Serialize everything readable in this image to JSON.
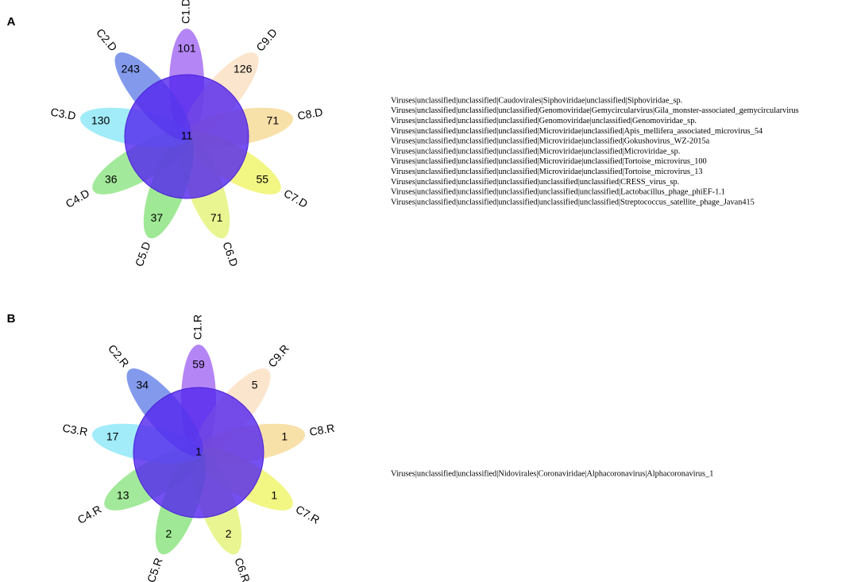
{
  "panels": [
    {
      "label": "A",
      "center": 11,
      "petals": [
        {
          "name": "C1.D",
          "count": 101
        },
        {
          "name": "C9.D",
          "count": 126
        },
        {
          "name": "C8.D",
          "count": 71
        },
        {
          "name": "C7.D",
          "count": 55
        },
        {
          "name": "C6.D",
          "count": 71
        },
        {
          "name": "C5.D",
          "count": 37
        },
        {
          "name": "C4.D",
          "count": 36
        },
        {
          "name": "C3.D",
          "count": 130
        },
        {
          "name": "C2.D",
          "count": 243
        }
      ],
      "taxa": [
        "Viruses|unclassified|unclassified|Caudovirales|Siphoviridae|unclassified|Siphoviridae_sp.",
        "Viruses|unclassified|unclassified|unclassified|Genomoviridae|Gemycircularvirus|Gila_monster-associated_gemycircularvirus",
        "Viruses|unclassified|unclassified|unclassified|Genomoviridae|unclassified|Genomoviridae_sp.",
        "Viruses|unclassified|unclassified|unclassified|Microviridae|unclassified|Apis_mellifera_associated_microvirus_54",
        "Viruses|unclassified|unclassified|unclassified|Microviridae|unclassified|Gokushovirus_WZ-2015a",
        "Viruses|unclassified|unclassified|unclassified|Microviridae|unclassified|Microviridae_sp.",
        "Viruses|unclassified|unclassified|unclassified|Microviridae|unclassified|Tortoise_microvirus_100",
        "Viruses|unclassified|unclassified|unclassified|Microviridae|unclassified|Tortoise_microvirus_13",
        "Viruses|unclassified|unclassified|unclassified|unclassified|unclassified|CRESS_virus_sp.",
        "Viruses|unclassified|unclassified|unclassified|unclassified|unclassified|Lactobacillus_phage_phiEF-1.1",
        "Viruses|unclassified|unclassified|unclassified|unclassified|unclassified|Streptococcus_satellite_phage_Javan415"
      ]
    },
    {
      "label": "B",
      "center": 1,
      "petals": [
        {
          "name": "C1.R",
          "count": 59
        },
        {
          "name": "C9.R",
          "count": 5
        },
        {
          "name": "C8.R",
          "count": 1
        },
        {
          "name": "C7.R",
          "count": 1
        },
        {
          "name": "C6.R",
          "count": 2
        },
        {
          "name": "C5.R",
          "count": 2
        },
        {
          "name": "C4.R",
          "count": 13
        },
        {
          "name": "C3.R",
          "count": 17
        },
        {
          "name": "C2.R",
          "count": 34
        }
      ],
      "taxa": [
        "Viruses|unclassified|unclassified|Nidovirales|Coronaviridae|Alphacoronavirus|Alphacoronavirus_1"
      ]
    }
  ]
}
